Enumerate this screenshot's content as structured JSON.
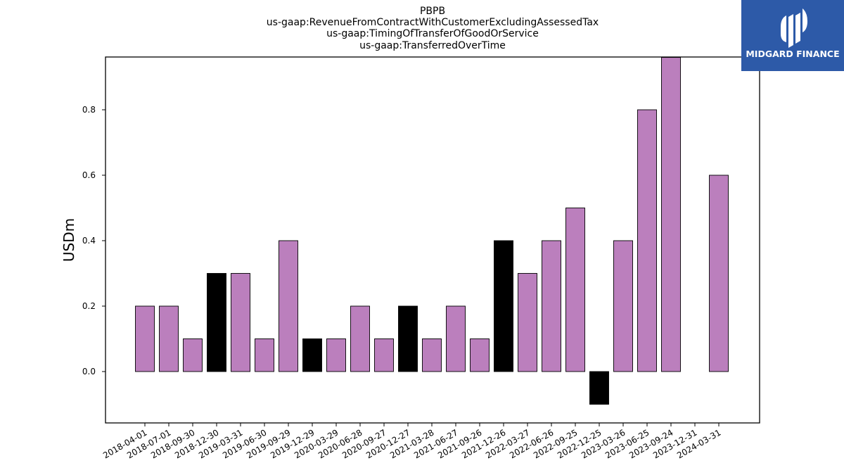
{
  "chart_data": {
    "type": "bar",
    "title_lines": [
      "PBPB",
      "us-gaap:RevenueFromContractWithCustomerExcludingAssessedTax",
      "us-gaap:TimingOfTransferOfGoodOrService",
      "us-gaap:TransferredOverTime"
    ],
    "xlabel": "",
    "ylabel": "USDm",
    "categories": [
      "2018-04-01",
      "2018-07-01",
      "2018-09-30",
      "2018-12-30",
      "2019-03-31",
      "2019-06-30",
      "2019-09-29",
      "2019-12-29",
      "2020-03-29",
      "2020-06-28",
      "2020-09-27",
      "2020-12-27",
      "2021-03-28",
      "2021-06-27",
      "2021-09-26",
      "2021-12-26",
      "2022-03-27",
      "2022-06-26",
      "2022-09-25",
      "2022-12-25",
      "2023-03-26",
      "2023-06-25",
      "2023-09-24",
      "2023-12-31",
      "2024-03-31"
    ],
    "values": [
      0.2,
      0.2,
      0.1,
      0.3,
      0.3,
      0.1,
      0.4,
      0.1,
      0.1,
      0.2,
      0.1,
      0.2,
      0.1,
      0.2,
      0.1,
      0.4,
      0.3,
      0.4,
      0.5,
      -0.1,
      0.4,
      0.8,
      0.96,
      0.0,
      0.6
    ],
    "bar_colors": [
      "#bb7fbd",
      "#bb7fbd",
      "#bb7fbd",
      "#000000",
      "#bb7fbd",
      "#bb7fbd",
      "#bb7fbd",
      "#000000",
      "#bb7fbd",
      "#bb7fbd",
      "#bb7fbd",
      "#000000",
      "#bb7fbd",
      "#bb7fbd",
      "#bb7fbd",
      "#000000",
      "#bb7fbd",
      "#bb7fbd",
      "#bb7fbd",
      "#000000",
      "#bb7fbd",
      "#bb7fbd",
      "#bb7fbd",
      "#000000",
      "#bb7fbd"
    ],
    "yticks": [
      0.0,
      0.2,
      0.4,
      0.6,
      0.8
    ],
    "ylim": [
      -0.16,
      0.96
    ],
    "grid": false,
    "legend": false
  },
  "logo": {
    "text": "MIDGARD FINANCE",
    "background": "#2d5aa8"
  }
}
